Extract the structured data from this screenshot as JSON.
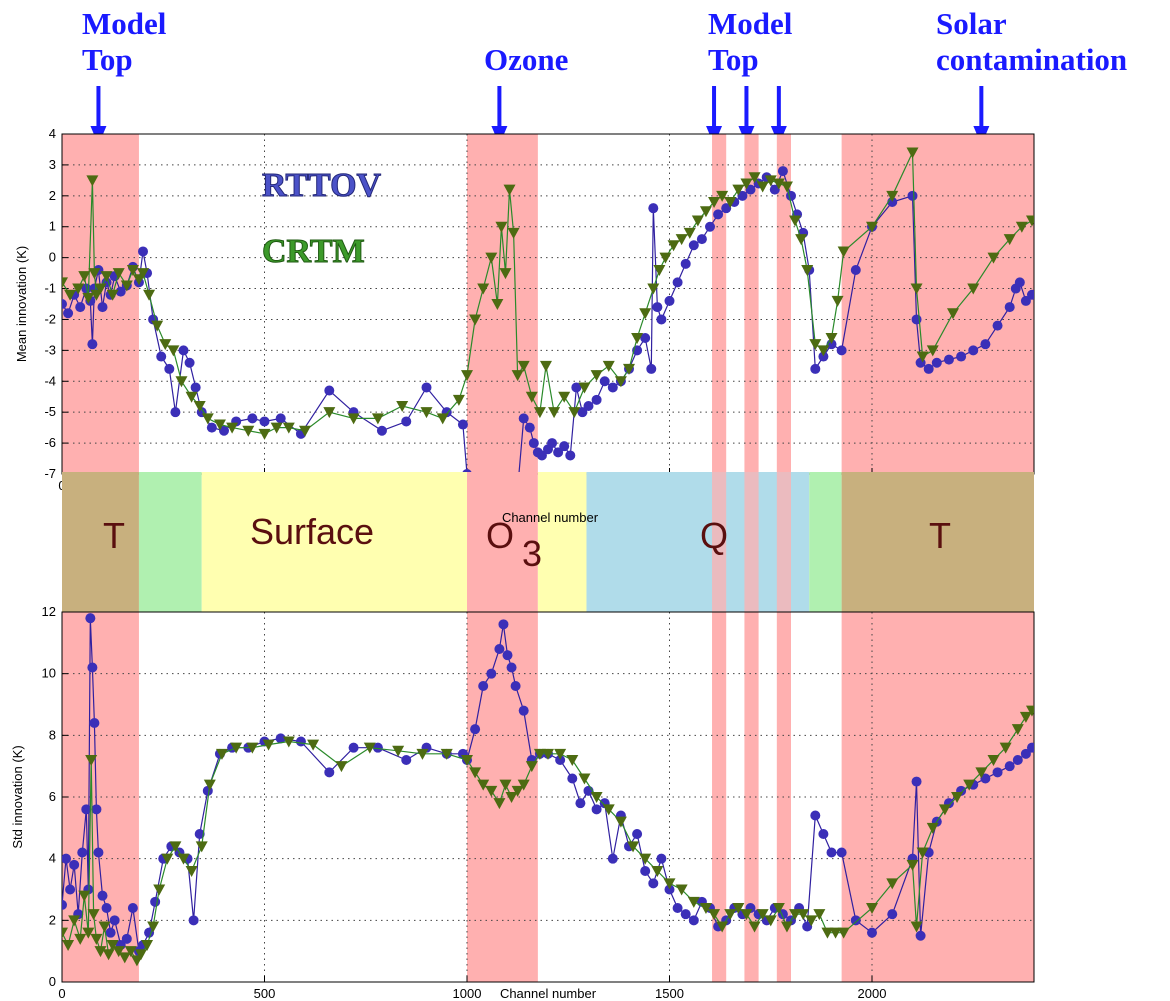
{
  "annotations": [
    {
      "line1": "Model",
      "line2": "Top",
      "arrows": [
        90
      ]
    },
    {
      "line1": "",
      "line2": "Ozone",
      "arrows": [
        1080
      ]
    },
    {
      "line1": "Model",
      "line2": "Top",
      "arrows": [
        1610,
        1690,
        1770
      ]
    },
    {
      "line1": "Solar",
      "line2": "contamination",
      "arrows": [
        2270
      ]
    }
  ],
  "bands": {
    "labels": [
      "T",
      "Surface",
      "O",
      "3",
      "Q",
      "T"
    ],
    "label_color": "#5a0f0f",
    "segments": [
      {
        "x0": 0,
        "x1": 190,
        "color": "#c8b07e"
      },
      {
        "x0": 190,
        "x1": 345,
        "color": "#b0f0b0"
      },
      {
        "x0": 345,
        "x1": 1000,
        "color": "#ffffb0"
      },
      {
        "x0": 1000,
        "x1": 1175,
        "color": "#ffb0b0"
      },
      {
        "x0": 1175,
        "x1": 1295,
        "color": "#ffffb0"
      },
      {
        "x0": 1295,
        "x1": 1845,
        "color": "#b0dcea"
      },
      {
        "x0": 1845,
        "x1": 1925,
        "color": "#b0f0b0"
      },
      {
        "x0": 1925,
        "x1": 2400,
        "color": "#c8b07e"
      }
    ]
  },
  "highlight_regions": {
    "color": "#ffb0b0",
    "ranges": [
      [
        0,
        190
      ],
      [
        1000,
        1175
      ],
      [
        1605,
        1640
      ],
      [
        1685,
        1720
      ],
      [
        1765,
        1800
      ],
      [
        1925,
        2400
      ]
    ]
  },
  "colors": {
    "rttov": "#3b2fb8",
    "crtm": "#4d6b12",
    "crtm_line": "#2a8a2a",
    "rttov_line": "#3020a0",
    "arrow": "#1a1aff"
  },
  "chart_data": [
    {
      "type": "line",
      "ylabel": "Mean innovation (K)",
      "xlabel": "Channel number",
      "xlim": [
        0,
        2400
      ],
      "ylim": [
        -7,
        4
      ],
      "xticks": [
        0,
        500,
        1000,
        1500,
        2000
      ],
      "yticks": [
        -7,
        -6,
        -5,
        -4,
        -3,
        -2,
        -1,
        0,
        1,
        2,
        3,
        4
      ],
      "grid": true,
      "legend": [
        "RTTOV",
        "CRTM"
      ],
      "legend_placement": "upper-left inside",
      "series": [
        {
          "name": "RTTOV",
          "marker": "circle",
          "x": [
            0,
            15,
            30,
            45,
            60,
            70,
            75,
            80,
            90,
            100,
            110,
            120,
            130,
            145,
            160,
            175,
            190,
            200,
            210,
            225,
            245,
            265,
            280,
            300,
            315,
            330,
            345,
            370,
            400,
            430,
            470,
            500,
            540,
            590,
            660,
            720,
            790,
            850,
            900,
            950,
            990,
            1000,
            1010,
            1030,
            1050,
            1065,
            1080,
            1090,
            1100,
            1110,
            1125,
            1140,
            1155,
            1165,
            1175,
            1185,
            1200,
            1210,
            1225,
            1240,
            1255,
            1270,
            1285,
            1300,
            1320,
            1340,
            1360,
            1380,
            1400,
            1420,
            1440,
            1455,
            1460,
            1470,
            1480,
            1500,
            1520,
            1540,
            1560,
            1580,
            1600,
            1620,
            1640,
            1660,
            1680,
            1700,
            1720,
            1740,
            1760,
            1780,
            1800,
            1815,
            1830,
            1845,
            1860,
            1880,
            1900,
            1925,
            1960,
            2000,
            2050,
            2100,
            2110,
            2120,
            2140,
            2160,
            2190,
            2220,
            2250,
            2280,
            2310,
            2340,
            2355,
            2365,
            2380,
            2395
          ],
          "y": [
            -1.5,
            -1.8,
            -1.2,
            -1.6,
            -1.0,
            -1.4,
            -2.8,
            -1.0,
            -0.4,
            -1.6,
            -0.8,
            -1.2,
            -0.6,
            -1.1,
            -0.9,
            -0.3,
            -0.8,
            0.2,
            -0.5,
            -2.0,
            -3.2,
            -3.6,
            -5.0,
            -3.0,
            -3.4,
            -4.2,
            -5.0,
            -5.5,
            -5.6,
            -5.3,
            -5.2,
            -5.3,
            -5.2,
            -5.7,
            -4.3,
            -5.0,
            -5.6,
            -5.3,
            -4.2,
            -5.0,
            -5.4,
            -7.0,
            -7.5,
            -7.5,
            -7.5,
            -7.5,
            -7.5,
            -7.5,
            -7.5,
            -7.5,
            -7.5,
            -5.2,
            -5.5,
            -6.0,
            -6.3,
            -6.4,
            -6.2,
            -6.0,
            -6.3,
            -6.1,
            -6.4,
            -4.2,
            -5.0,
            -4.8,
            -4.6,
            -4.0,
            -4.2,
            -4.0,
            -3.6,
            -3.0,
            -2.6,
            -3.6,
            1.6,
            -1.6,
            -2.0,
            -1.4,
            -0.8,
            -0.2,
            0.4,
            0.6,
            1.0,
            1.4,
            1.6,
            1.8,
            2.0,
            2.2,
            2.4,
            2.6,
            2.2,
            2.8,
            2.0,
            1.4,
            0.8,
            -0.4,
            -3.6,
            -3.2,
            -2.8,
            -3.0,
            -0.4,
            1.0,
            1.8,
            2.0,
            -2.0,
            -3.4,
            -3.6,
            -3.4,
            -3.3,
            -3.2,
            -3.0,
            -2.8,
            -2.2,
            -1.6,
            -1.0,
            -0.8,
            -1.4,
            -1.2
          ]
        },
        {
          "name": "CRTM",
          "marker": "triangle-down",
          "x": [
            0,
            20,
            40,
            55,
            65,
            75,
            80,
            85,
            95,
            110,
            125,
            140,
            160,
            175,
            190,
            200,
            215,
            235,
            255,
            275,
            295,
            320,
            340,
            360,
            390,
            420,
            460,
            500,
            530,
            560,
            600,
            660,
            720,
            780,
            840,
            900,
            940,
            980,
            1000,
            1020,
            1040,
            1060,
            1075,
            1085,
            1095,
            1105,
            1115,
            1125,
            1140,
            1160,
            1180,
            1195,
            1215,
            1240,
            1265,
            1290,
            1320,
            1350,
            1380,
            1400,
            1420,
            1440,
            1460,
            1475,
            1490,
            1510,
            1530,
            1550,
            1570,
            1590,
            1610,
            1630,
            1650,
            1670,
            1690,
            1710,
            1730,
            1750,
            1770,
            1790,
            1810,
            1825,
            1840,
            1860,
            1880,
            1900,
            1915,
            1930,
            2000,
            2050,
            2100,
            2110,
            2125,
            2150,
            2200,
            2250,
            2300,
            2340,
            2370,
            2395
          ],
          "y": [
            -0.8,
            -1.2,
            -1.0,
            -0.6,
            -1.3,
            2.5,
            -0.5,
            -1.2,
            -1.0,
            -0.6,
            -1.2,
            -0.5,
            -0.9,
            -0.4,
            -0.7,
            -0.5,
            -1.2,
            -2.2,
            -2.8,
            -3.0,
            -4.0,
            -4.5,
            -4.8,
            -5.2,
            -5.4,
            -5.5,
            -5.6,
            -5.7,
            -5.5,
            -5.5,
            -5.6,
            -5.0,
            -5.2,
            -5.2,
            -4.8,
            -5.0,
            -5.2,
            -4.6,
            -3.8,
            -2.0,
            -1.0,
            0.0,
            -1.5,
            1.0,
            -0.5,
            2.2,
            0.8,
            -3.8,
            -3.5,
            -4.5,
            -5.0,
            -3.5,
            -5.0,
            -4.5,
            -5.0,
            -4.2,
            -3.8,
            -3.5,
            -4.0,
            -3.6,
            -2.6,
            -1.8,
            -1.0,
            -0.4,
            0.0,
            0.4,
            0.6,
            0.8,
            1.2,
            1.5,
            1.8,
            2.0,
            1.8,
            2.2,
            2.4,
            2.6,
            2.3,
            2.5,
            2.4,
            2.3,
            1.2,
            0.6,
            -0.4,
            -2.8,
            -3.0,
            -2.6,
            -1.4,
            0.2,
            1.0,
            2.0,
            3.4,
            -1.0,
            -3.2,
            -3.0,
            -1.8,
            -1.0,
            0.0,
            0.6,
            1.0,
            1.2
          ]
        }
      ]
    },
    {
      "type": "line",
      "ylabel": "Std innovation (K)",
      "xlabel": "Channel number",
      "xlim": [
        0,
        2400
      ],
      "ylim": [
        0,
        12
      ],
      "xticks": [
        0,
        500,
        1000,
        1500,
        2000
      ],
      "yticks": [
        0,
        2,
        4,
        6,
        8,
        10,
        12
      ],
      "grid": true,
      "series": [
        {
          "name": "RTTOV",
          "marker": "circle",
          "x": [
            0,
            10,
            20,
            30,
            40,
            50,
            60,
            65,
            70,
            75,
            80,
            85,
            90,
            100,
            110,
            120,
            130,
            145,
            160,
            175,
            190,
            200,
            215,
            230,
            250,
            270,
            290,
            310,
            325,
            340,
            360,
            390,
            420,
            460,
            500,
            540,
            590,
            660,
            720,
            780,
            850,
            900,
            950,
            990,
            1000,
            1020,
            1040,
            1060,
            1080,
            1090,
            1100,
            1110,
            1120,
            1140,
            1160,
            1180,
            1200,
            1230,
            1260,
            1280,
            1300,
            1320,
            1340,
            1360,
            1380,
            1400,
            1420,
            1440,
            1460,
            1480,
            1500,
            1520,
            1540,
            1560,
            1580,
            1600,
            1620,
            1640,
            1660,
            1680,
            1700,
            1720,
            1740,
            1760,
            1780,
            1800,
            1820,
            1840,
            1860,
            1880,
            1900,
            1925,
            1960,
            2000,
            2050,
            2100,
            2110,
            2120,
            2140,
            2160,
            2190,
            2220,
            2250,
            2280,
            2310,
            2340,
            2360,
            2380,
            2395
          ],
          "y": [
            2.5,
            4.0,
            3.0,
            3.8,
            2.2,
            4.2,
            5.6,
            3.0,
            11.8,
            10.2,
            8.4,
            5.6,
            4.2,
            2.8,
            2.4,
            1.6,
            2.0,
            1.2,
            1.4,
            2.4,
            1.0,
            1.2,
            1.6,
            2.6,
            4.0,
            4.4,
            4.2,
            4.0,
            2.0,
            4.8,
            6.2,
            7.4,
            7.6,
            7.6,
            7.8,
            7.9,
            7.8,
            6.8,
            7.6,
            7.6,
            7.2,
            7.6,
            7.4,
            7.4,
            7.2,
            8.2,
            9.6,
            10.0,
            10.8,
            11.6,
            10.6,
            10.2,
            9.6,
            8.8,
            7.2,
            7.4,
            7.4,
            7.2,
            6.6,
            5.8,
            6.2,
            5.6,
            5.8,
            4.0,
            5.4,
            4.4,
            4.8,
            3.6,
            3.2,
            4.0,
            3.0,
            2.4,
            2.2,
            2.0,
            2.6,
            2.4,
            1.8,
            2.0,
            2.4,
            2.2,
            2.4,
            2.2,
            2.0,
            2.4,
            2.2,
            2.0,
            2.4,
            1.8,
            5.4,
            4.8,
            4.2,
            4.2,
            2.0,
            1.6,
            2.2,
            4.0,
            6.5,
            1.5,
            4.2,
            5.2,
            5.8,
            6.2,
            6.4,
            6.6,
            6.8,
            7.0,
            7.2,
            7.4,
            7.6
          ]
        },
        {
          "name": "CRTM",
          "marker": "triangle-down",
          "x": [
            0,
            15,
            30,
            45,
            55,
            65,
            72,
            78,
            85,
            95,
            105,
            115,
            125,
            140,
            155,
            170,
            185,
            195,
            210,
            225,
            240,
            260,
            280,
            300,
            320,
            345,
            365,
            395,
            430,
            470,
            510,
            560,
            620,
            690,
            760,
            830,
            890,
            950,
            1000,
            1020,
            1040,
            1060,
            1080,
            1095,
            1110,
            1125,
            1140,
            1160,
            1180,
            1200,
            1230,
            1260,
            1290,
            1320,
            1350,
            1380,
            1410,
            1440,
            1470,
            1500,
            1530,
            1560,
            1590,
            1610,
            1630,
            1650,
            1670,
            1690,
            1710,
            1730,
            1750,
            1770,
            1790,
            1810,
            1830,
            1850,
            1870,
            1890,
            1910,
            1930,
            2000,
            2050,
            2100,
            2110,
            2125,
            2150,
            2180,
            2210,
            2240,
            2270,
            2300,
            2330,
            2360,
            2380,
            2395
          ],
          "y": [
            1.6,
            1.2,
            2.0,
            1.4,
            2.8,
            1.6,
            7.2,
            2.2,
            1.4,
            1.0,
            1.8,
            0.9,
            1.2,
            1.0,
            0.8,
            1.0,
            0.7,
            0.9,
            1.2,
            1.8,
            3.0,
            4.0,
            4.4,
            4.0,
            3.6,
            4.4,
            6.4,
            7.4,
            7.6,
            7.6,
            7.7,
            7.8,
            7.7,
            7.0,
            7.6,
            7.5,
            7.4,
            7.4,
            7.2,
            6.8,
            6.4,
            6.2,
            5.8,
            6.4,
            6.0,
            6.2,
            6.4,
            7.0,
            7.4,
            7.4,
            7.4,
            7.2,
            6.6,
            6.0,
            5.6,
            5.2,
            4.4,
            4.0,
            3.6,
            3.2,
            3.0,
            2.6,
            2.4,
            2.2,
            1.8,
            2.2,
            2.4,
            2.2,
            1.8,
            2.2,
            2.0,
            2.4,
            1.8,
            2.2,
            2.2,
            2.0,
            2.2,
            1.6,
            1.6,
            1.6,
            2.4,
            3.2,
            3.8,
            1.8,
            4.2,
            5.0,
            5.6,
            6.0,
            6.4,
            6.8,
            7.2,
            7.6,
            8.2,
            8.6,
            8.8
          ]
        }
      ]
    }
  ]
}
